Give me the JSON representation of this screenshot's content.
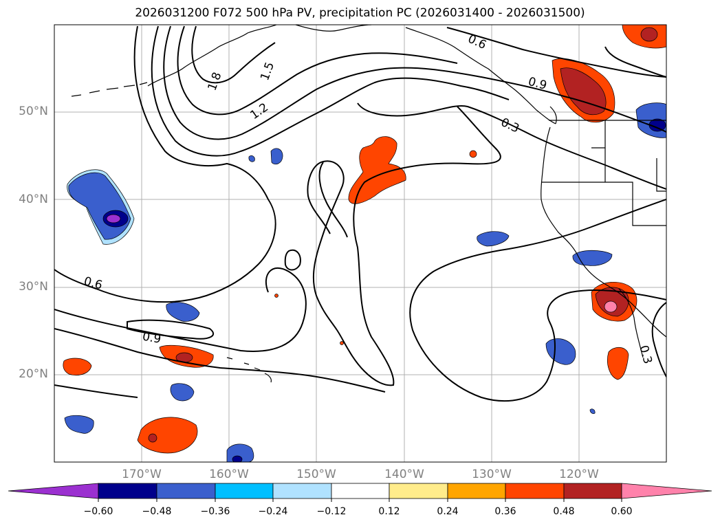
{
  "title": "2026031200 F072 500 hPa PV, precipitation PC (2026031400 - 2026031500)",
  "lat_labels": [
    "50°N",
    "40°N",
    "30°N",
    "20°N"
  ],
  "lon_labels": [
    "170°W",
    "160°W",
    "150°W",
    "140°W",
    "130°W",
    "120°W"
  ],
  "contour_labels": [
    "1.8",
    "1.5",
    "1.2",
    "0.6",
    "0.9",
    "0.3",
    "0.6",
    "0.9",
    "0.3"
  ],
  "colorbar": {
    "ticks": [
      "−0.60",
      "−0.48",
      "−0.36",
      "−0.24",
      "−0.12",
      "0.12",
      "0.24",
      "0.36",
      "0.48",
      "0.60"
    ],
    "colors": [
      "#9b30d0",
      "#00008b",
      "#3a5fcd",
      "#00bfff",
      "#b0e2ff",
      "#ffffff",
      "#ffec8b",
      "#ffa500",
      "#ff4500",
      "#b22222",
      "#ff82ab"
    ]
  },
  "map": {
    "lon_range": [
      -180,
      -110
    ],
    "lat_range": [
      10,
      60
    ],
    "gridline_lons": [
      -170,
      -160,
      -150,
      -140,
      -130,
      -120
    ],
    "gridline_lats": [
      20,
      30,
      40,
      50
    ]
  }
}
